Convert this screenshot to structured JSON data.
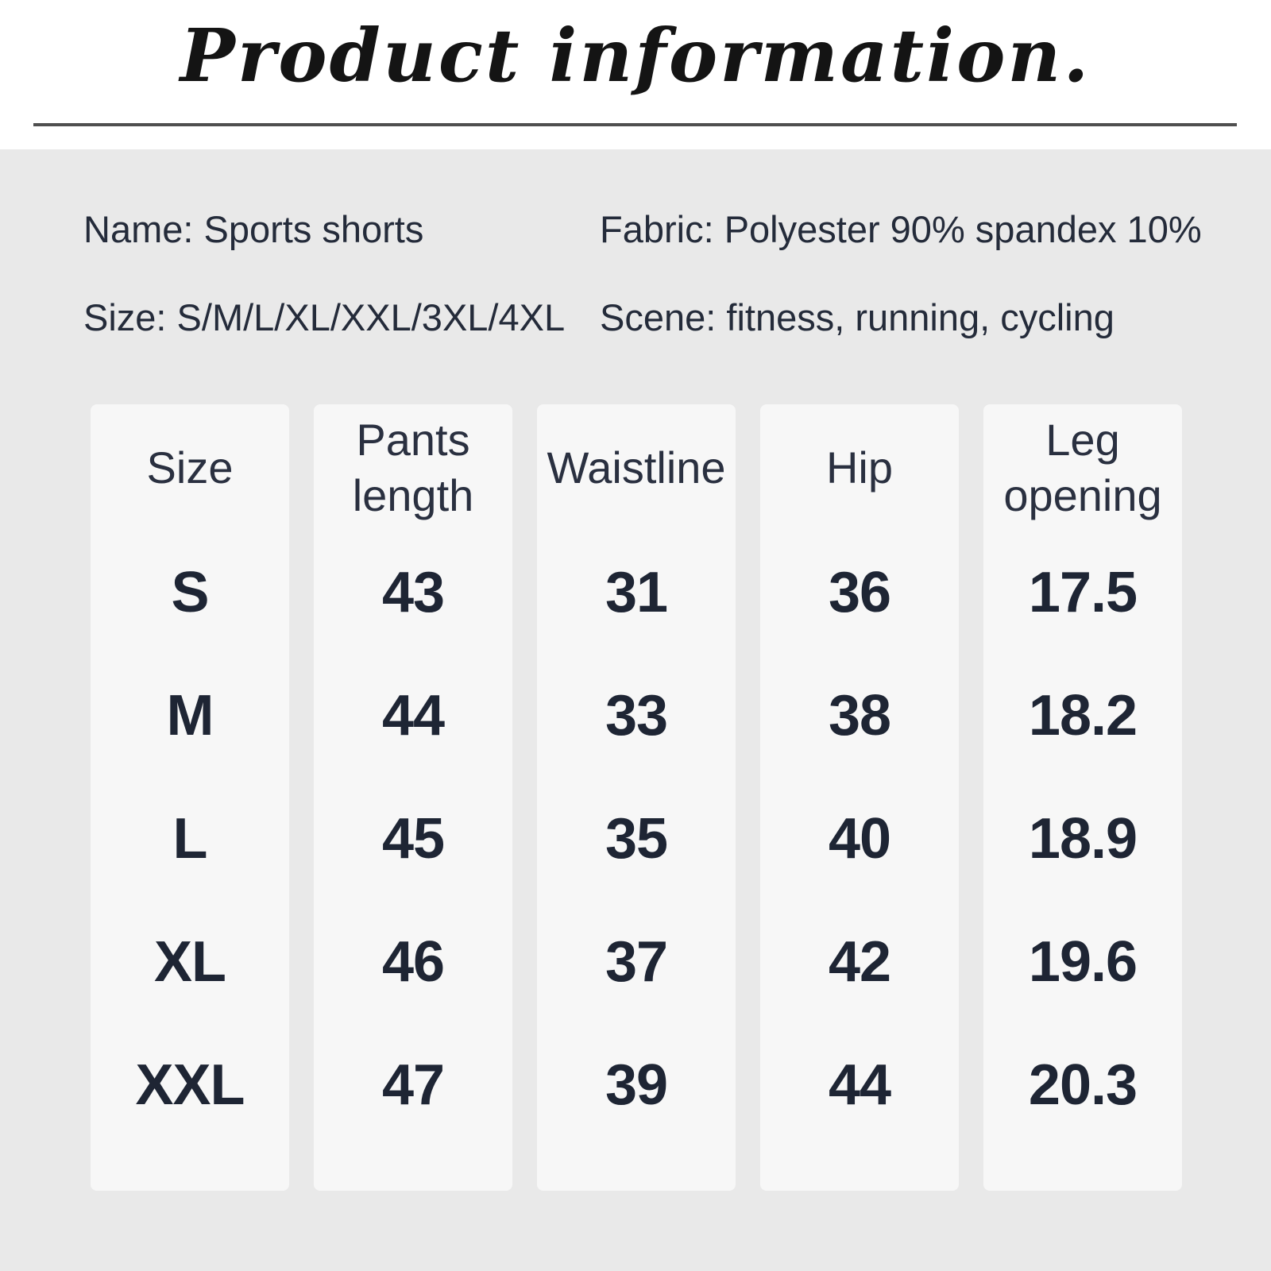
{
  "title": "Product information.",
  "info": {
    "name": "Name: Sports shorts",
    "fabric": "Fabric: Polyester 90% spandex 10%",
    "size": "Size: S/M/L/XL/XXL/3XL/4XL",
    "scene": "Scene: fitness, running, cycling"
  },
  "size_table": {
    "columns": [
      {
        "header": "Size",
        "values": [
          "S",
          "M",
          "L",
          "XL",
          "XXL"
        ]
      },
      {
        "header": "Pants length",
        "values": [
          "43",
          "44",
          "45",
          "46",
          "47"
        ]
      },
      {
        "header": "Waistline",
        "values": [
          "31",
          "33",
          "35",
          "37",
          "39"
        ]
      },
      {
        "header": "Hip",
        "values": [
          "36",
          "38",
          "40",
          "42",
          "44"
        ]
      },
      {
        "header": "Leg opening",
        "values": [
          "17.5",
          "18.2",
          "18.9",
          "19.6",
          "20.3"
        ]
      }
    ]
  },
  "colors": {
    "panel_bg": "#e9e9e9",
    "card_bg": "#f7f7f7",
    "text": "#242b3a",
    "data_text": "#1e2534",
    "rule": "#4f4f4f",
    "title_text": "#141414"
  }
}
